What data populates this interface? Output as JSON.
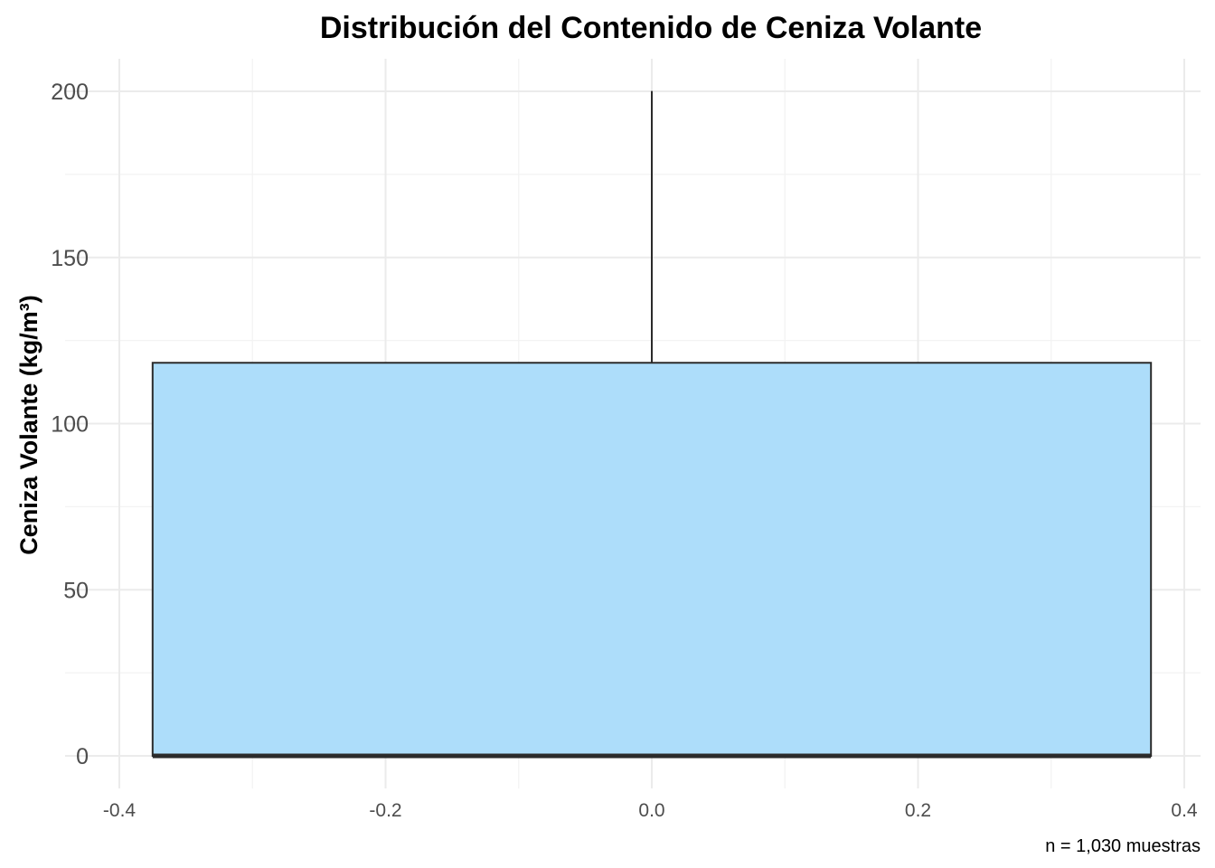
{
  "chart_data": {
    "type": "box",
    "title": "Distribución del Contenido de Ceniza Volante",
    "ylabel": "Ceniza Volante (kg/m³)",
    "xlabel": "",
    "caption": "n = 1,030 muestras",
    "xlim": [
      -0.4,
      0.4
    ],
    "ylim": [
      -8,
      210
    ],
    "x_ticks": [
      -0.4,
      -0.2,
      0.0,
      0.2,
      0.4
    ],
    "x_tick_labels": [
      "-0.4",
      "-0.2",
      "0.0",
      "0.2",
      "0.4"
    ],
    "y_ticks": [
      0,
      50,
      100,
      150,
      200
    ],
    "y_tick_labels": [
      "0",
      "50",
      "100",
      "150",
      "200"
    ],
    "grid": true,
    "box": {
      "x_left": -0.375,
      "x_right": 0.375,
      "min": 0,
      "q1": 0,
      "median": 0,
      "q3": 118.3,
      "max": 200.1
    },
    "colors": {
      "box_fill": "#aadcfa",
      "box_stroke": "#2b2b2b",
      "grid_major": "#ebebeb",
      "grid_minor": "#f3f3f3"
    }
  }
}
